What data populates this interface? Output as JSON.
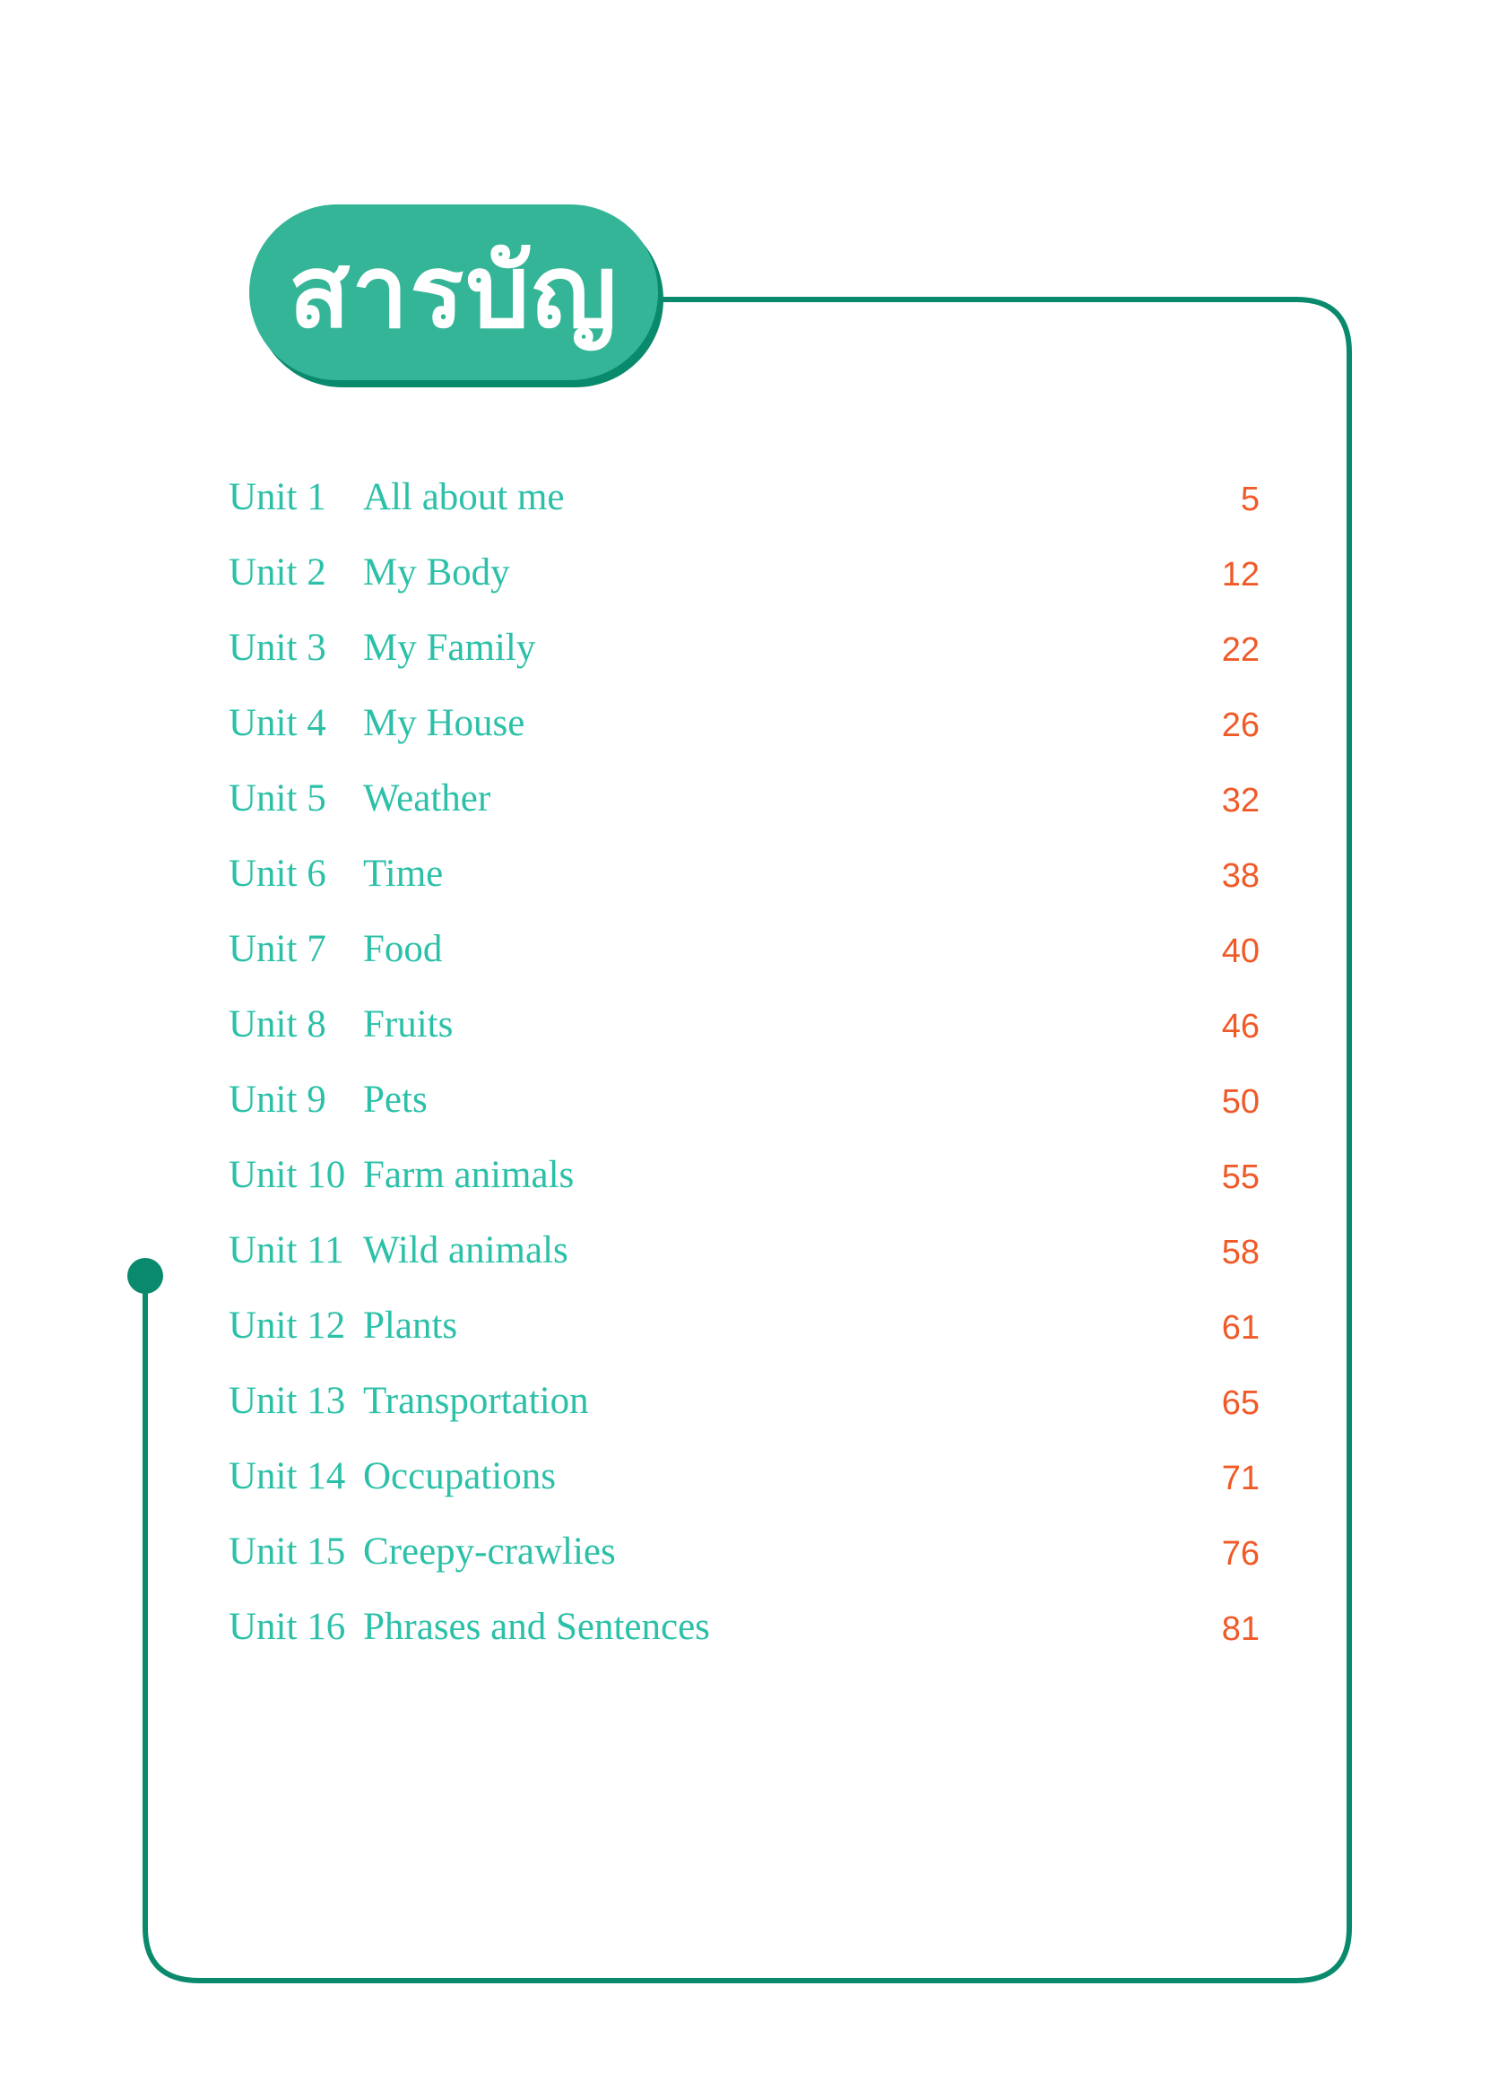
{
  "header": {
    "title": "สารบัญ"
  },
  "colors": {
    "accent": "#35b597",
    "line": "#0a8a6c",
    "text": "#2cc0a8",
    "page_number": "#f05a28"
  },
  "toc": [
    {
      "unit": "Unit 1",
      "title": "All about me",
      "page": "5"
    },
    {
      "unit": "Unit 2",
      "title": "My Body",
      "page": "12"
    },
    {
      "unit": "Unit 3",
      "title": "My Family",
      "page": "22"
    },
    {
      "unit": "Unit 4",
      "title": "My House",
      "page": "26"
    },
    {
      "unit": "Unit 5",
      "title": "Weather",
      "page": "32"
    },
    {
      "unit": "Unit 6",
      "title": "Time",
      "page": "38"
    },
    {
      "unit": "Unit 7",
      "title": "Food",
      "page": "40"
    },
    {
      "unit": "Unit 8",
      "title": "Fruits",
      "page": "46"
    },
    {
      "unit": "Unit 9",
      "title": "Pets",
      "page": "50"
    },
    {
      "unit": "Unit 10",
      "title": "Farm animals",
      "page": "55"
    },
    {
      "unit": "Unit 11",
      "title": "Wild animals",
      "page": "58"
    },
    {
      "unit": "Unit 12",
      "title": "Plants",
      "page": "61"
    },
    {
      "unit": "Unit 13",
      "title": "Transportation",
      "page": "65"
    },
    {
      "unit": "Unit 14",
      "title": "Occupations",
      "page": "71"
    },
    {
      "unit": "Unit 15",
      "title": "Creepy-crawlies",
      "page": "76"
    },
    {
      "unit": "Unit 16",
      "title": "Phrases and Sentences",
      "page": "81"
    }
  ]
}
